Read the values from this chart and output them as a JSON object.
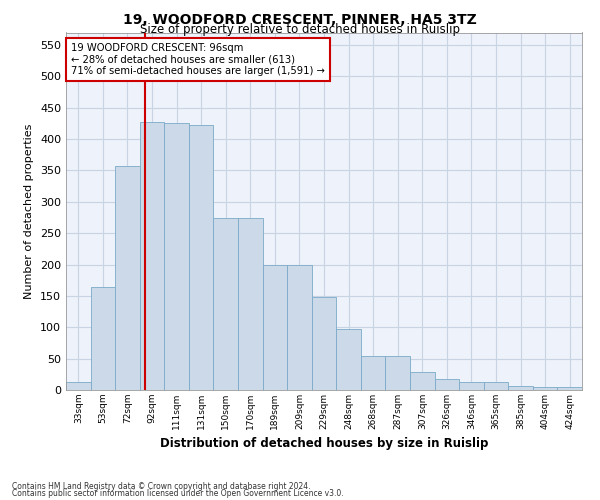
{
  "title": "19, WOODFORD CRESCENT, PINNER, HA5 3TZ",
  "subtitle": "Size of property relative to detached houses in Ruislip",
  "xlabel": "Distribution of detached houses by size in Ruislip",
  "ylabel": "Number of detached properties",
  "categories": [
    "33sqm",
    "53sqm",
    "72sqm",
    "92sqm",
    "111sqm",
    "131sqm",
    "150sqm",
    "170sqm",
    "189sqm",
    "209sqm",
    "229sqm",
    "248sqm",
    "268sqm",
    "287sqm",
    "307sqm",
    "326sqm",
    "346sqm",
    "365sqm",
    "385sqm",
    "404sqm",
    "424sqm"
  ],
  "values": [
    12,
    165,
    357,
    428,
    425,
    422,
    275,
    275,
    200,
    200,
    148,
    97,
    55,
    55,
    28,
    18,
    12,
    12,
    6,
    5,
    5
  ],
  "bar_color": "#ccd9e8",
  "bar_edge_color": "#7aaac8",
  "grid_color": "#c8d4e4",
  "background_color": "#eef2fa",
  "property_line_color": "#cc0000",
  "line_x_index": 2.72,
  "annotation_text": "19 WOODFORD CRESCENT: 96sqm\n← 28% of detached houses are smaller (613)\n71% of semi-detached houses are larger (1,591) →",
  "annotation_box_color": "#ffffff",
  "annotation_box_edge": "#cc0000",
  "ylim": [
    0,
    570
  ],
  "yticks": [
    0,
    50,
    100,
    150,
    200,
    250,
    300,
    350,
    400,
    450,
    500,
    550
  ],
  "footnote1": "Contains HM Land Registry data © Crown copyright and database right 2024.",
  "footnote2": "Contains public sector information licensed under the Open Government Licence v3.0."
}
